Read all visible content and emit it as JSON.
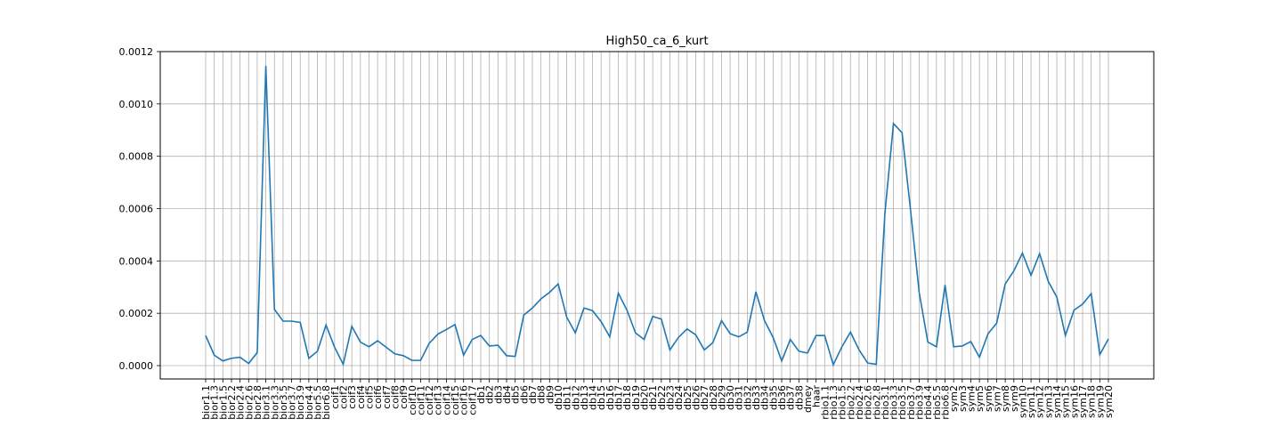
{
  "chart_data": {
    "type": "line",
    "title": "High50_ca_6_kurt",
    "xlabel": "",
    "ylabel": "",
    "ylim": [
      -5e-05,
      0.0012
    ],
    "yticks": [
      0.0,
      0.0002,
      0.0004,
      0.0006,
      0.0008,
      0.001,
      0.0012
    ],
    "ytick_labels": [
      "0.0000",
      "0.0002",
      "0.0004",
      "0.0006",
      "0.0008",
      "0.0010",
      "0.0012"
    ],
    "grid": true,
    "line_color": "#1f77b4",
    "categories": [
      "bior1.1",
      "bior1.3",
      "bior1.5",
      "bior2.2",
      "bior2.4",
      "bior2.6",
      "bior2.8",
      "bior3.1",
      "bior3.3",
      "bior3.5",
      "bior3.7",
      "bior3.9",
      "bior4.4",
      "bior5.5",
      "bior6.8",
      "coif1",
      "coif2",
      "coif3",
      "coif4",
      "coif5",
      "coif6",
      "coif7",
      "coif8",
      "coif9",
      "coif10",
      "coif11",
      "coif12",
      "coif13",
      "coif14",
      "coif15",
      "coif16",
      "coif17",
      "db1",
      "db2",
      "db3",
      "db4",
      "db5",
      "db6",
      "db7",
      "db8",
      "db9",
      "db10",
      "db11",
      "db12",
      "db13",
      "db14",
      "db15",
      "db16",
      "db17",
      "db18",
      "db19",
      "db20",
      "db21",
      "db22",
      "db23",
      "db24",
      "db25",
      "db26",
      "db27",
      "db28",
      "db29",
      "db30",
      "db31",
      "db32",
      "db33",
      "db34",
      "db35",
      "db36",
      "db37",
      "db38",
      "dmey",
      "haar",
      "rbio1.1",
      "rbio1.3",
      "rbio1.5",
      "rbio2.2",
      "rbio2.4",
      "rbio2.6",
      "rbio2.8",
      "rbio3.1",
      "rbio3.3",
      "rbio3.5",
      "rbio3.7",
      "rbio3.9",
      "rbio4.4",
      "rbio5.5",
      "rbio6.8",
      "sym2",
      "sym3",
      "sym4",
      "sym5",
      "sym6",
      "sym7",
      "sym8",
      "sym9",
      "sym10",
      "sym11",
      "sym12",
      "sym13",
      "sym14",
      "sym15",
      "sym16",
      "sym17",
      "sym18",
      "sym19",
      "sym20"
    ],
    "values": [
      0.000115,
      4e-05,
      1.8e-05,
      2.8e-05,
      3.2e-05,
      8e-06,
      5e-05,
      0.001145,
      0.000215,
      0.00017,
      0.00017,
      0.000165,
      2.8e-05,
      5.5e-05,
      0.000155,
      7e-05,
      5e-06,
      0.00015,
      9e-05,
      7.2e-05,
      9.5e-05,
      7e-05,
      4.5e-05,
      3.8e-05,
      2e-05,
      2e-05,
      8.5e-05,
      0.00012,
      0.000138,
      0.000157,
      4e-05,
      0.0001,
      0.000115,
      7.5e-05,
      7.8e-05,
      3.8e-05,
      3.5e-05,
      0.000193,
      0.00022,
      0.000255,
      0.00028,
      0.000312,
      0.000185,
      0.000125,
      0.00022,
      0.00021,
      0.000168,
      0.00011,
      0.000277,
      0.000212,
      0.000125,
      0.0001,
      0.000188,
      0.000178,
      6e-05,
      0.000108,
      0.00014,
      0.000118,
      6e-05,
      8.8e-05,
      0.000172,
      0.000122,
      0.00011,
      0.000128,
      0.000282,
      0.000172,
      0.000108,
      1.8e-05,
      0.0001,
      5.5e-05,
      4.8e-05,
      0.000115,
      0.000115,
      3e-06,
      7.2e-05,
      0.000128,
      6e-05,
      1e-05,
      5e-06,
      0.00058,
      0.000925,
      0.00089,
      0.00059,
      0.000278,
      9e-05,
      7.2e-05,
      0.000308,
      7.2e-05,
      7.5e-05,
      9.2e-05,
      3.2e-05,
      0.000122,
      0.000162,
      0.000312,
      0.000362,
      0.00043,
      0.000345,
      0.000428,
      0.000322,
      0.000262,
      0.000115,
      0.000212,
      0.000235,
      0.000275,
      4.2e-05,
      0.000102
    ]
  }
}
